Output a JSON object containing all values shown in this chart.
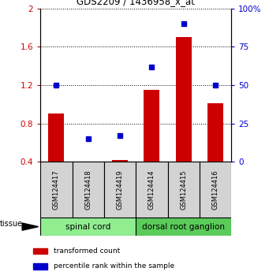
{
  "title": "GDS2209 / 1436958_x_at",
  "samples": [
    "GSM124417",
    "GSM124418",
    "GSM124419",
    "GSM124414",
    "GSM124415",
    "GSM124416"
  ],
  "transformed_count": [
    0.905,
    0.405,
    0.42,
    1.15,
    1.7,
    1.01
  ],
  "percentile_rank": [
    50,
    15,
    17,
    62,
    90,
    50
  ],
  "bar_color": "#cc0000",
  "dot_color": "#0000cc",
  "ylim_left": [
    0.4,
    2.0
  ],
  "ylim_right": [
    0,
    100
  ],
  "yticks_left": [
    0.4,
    0.8,
    1.2,
    1.6,
    2.0
  ],
  "yticks_right": [
    0,
    25,
    50,
    75,
    100
  ],
  "ytick_labels_left": [
    "0.4",
    "0.8",
    "1.2",
    "1.6",
    "2"
  ],
  "ytick_labels_right": [
    "0",
    "25",
    "50",
    "75",
    "100%"
  ],
  "groups": [
    {
      "label": "spinal cord",
      "indices": [
        0,
        1,
        2
      ],
      "color": "#90ee90"
    },
    {
      "label": "dorsal root ganglion",
      "indices": [
        3,
        4,
        5
      ],
      "color": "#5acc5a"
    }
  ],
  "tissue_label": "tissue",
  "legend_items": [
    {
      "label": "transformed count",
      "color": "#cc0000"
    },
    {
      "label": "percentile rank within the sample",
      "color": "#0000cc"
    }
  ],
  "background_color": "#ffffff",
  "sample_box_color": "#d3d3d3",
  "bar_width": 0.5
}
